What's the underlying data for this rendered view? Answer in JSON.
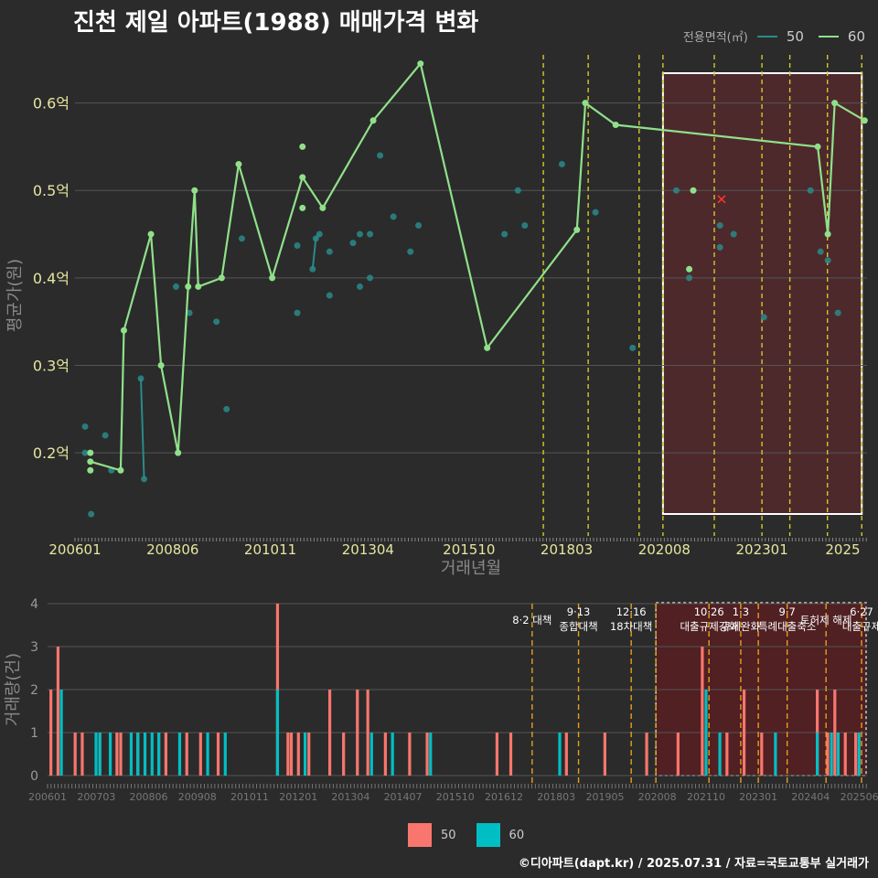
{
  "title": "진천 제일 아파트(1988) 매매가격 변화",
  "credit": "©디아파트(dapt.kr) / 2025.07.31 / 자료=국토교통부 실거래가",
  "legend_top": {
    "title": "전용면적(㎡)",
    "items": [
      {
        "label": "50",
        "color": "#2a8a8a"
      },
      {
        "label": "60",
        "color": "#90e08a"
      }
    ]
  },
  "legend_bottom": {
    "items": [
      {
        "label": "50",
        "color": "#f8766d"
      },
      {
        "label": "60",
        "color": "#00bfc4"
      }
    ]
  },
  "chart_data": [
    {
      "type": "line",
      "xlabel": "거래년월",
      "ylabel": "평균가(원)",
      "x_ticks": [
        "200601",
        "200806",
        "201011",
        "201304",
        "201510",
        "201803",
        "202008",
        "202301",
        "2025"
      ],
      "y_ticks": [
        "0.2억",
        "0.3억",
        "0.4억",
        "0.5억",
        "0.6억"
      ],
      "y_tick_values": [
        0.2,
        0.3,
        0.4,
        0.5,
        0.6
      ],
      "ylim": [
        0.105,
        0.655
      ],
      "xlim": [
        2006.0,
        2025.6
      ],
      "policy_lines": [
        2017.59,
        2018.7,
        2019.96,
        2020.55,
        2021.82,
        2023.0,
        2023.69,
        2024.62,
        2025.47
      ],
      "highlight_range": [
        2020.55,
        2025.47
      ],
      "marker_x": {
        "x": 2022.0,
        "y": 0.49
      },
      "series": [
        {
          "name": "50",
          "color": "#2a8a8a",
          "line_segments": [
            [
              [
                2007.63,
                0.285
              ],
              [
                2007.71,
                0.17
              ]
            ],
            [
              [
                2011.88,
                0.41
              ],
              [
                2011.96,
                0.445
              ],
              [
                2012.05,
                0.45
              ]
            ]
          ],
          "points": [
            [
              2006.25,
              0.23
            ],
            [
              2006.25,
              0.2
            ],
            [
              2006.4,
              0.13
            ],
            [
              2006.75,
              0.22
            ],
            [
              2006.9,
              0.18
            ],
            [
              2007.63,
              0.285
            ],
            [
              2007.71,
              0.17
            ],
            [
              2008.5,
              0.39
            ],
            [
              2008.83,
              0.36
            ],
            [
              2009.5,
              0.35
            ],
            [
              2009.75,
              0.25
            ],
            [
              2010.13,
              0.445
            ],
            [
              2011.5,
              0.437
            ],
            [
              2011.5,
              0.36
            ],
            [
              2011.88,
              0.41
            ],
            [
              2011.96,
              0.445
            ],
            [
              2012.05,
              0.45
            ],
            [
              2012.3,
              0.43
            ],
            [
              2012.3,
              0.38
            ],
            [
              2012.88,
              0.44
            ],
            [
              2013.05,
              0.45
            ],
            [
              2013.05,
              0.39
            ],
            [
              2013.3,
              0.45
            ],
            [
              2013.3,
              0.4
            ],
            [
              2013.55,
              0.54
            ],
            [
              2013.88,
              0.47
            ],
            [
              2014.3,
              0.43
            ],
            [
              2014.5,
              0.46
            ],
            [
              2016.63,
              0.45
            ],
            [
              2016.96,
              0.5
            ],
            [
              2017.13,
              0.46
            ],
            [
              2018.05,
              0.53
            ],
            [
              2018.88,
              0.475
            ],
            [
              2019.8,
              0.32
            ],
            [
              2020.88,
              0.5
            ],
            [
              2021.2,
              0.4
            ],
            [
              2021.96,
              0.46
            ],
            [
              2021.96,
              0.435
            ],
            [
              2022.3,
              0.45
            ],
            [
              2023.05,
              0.355
            ],
            [
              2024.2,
              0.5
            ],
            [
              2024.45,
              0.43
            ],
            [
              2024.63,
              0.42
            ],
            [
              2024.88,
              0.36
            ]
          ]
        },
        {
          "name": "60",
          "color": "#90e08a",
          "line": [
            [
              2006.38,
              0.19
            ],
            [
              2007.13,
              0.18
            ],
            [
              2007.21,
              0.34
            ],
            [
              2007.88,
              0.45
            ],
            [
              2008.13,
              0.3
            ],
            [
              2008.55,
              0.2
            ],
            [
              2008.8,
              0.39
            ],
            [
              2008.96,
              0.5
            ],
            [
              2009.05,
              0.39
            ],
            [
              2009.63,
              0.4
            ],
            [
              2010.05,
              0.53
            ],
            [
              2010.88,
              0.4
            ],
            [
              2011.63,
              0.515
            ],
            [
              2012.13,
              0.48
            ],
            [
              2013.38,
              0.58
            ],
            [
              2014.55,
              0.645
            ],
            [
              2016.2,
              0.32
            ],
            [
              2018.42,
              0.455
            ],
            [
              2018.63,
              0.6
            ],
            [
              2019.38,
              0.575
            ],
            [
              2024.38,
              0.55
            ],
            [
              2024.63,
              0.45
            ],
            [
              2024.8,
              0.6
            ],
            [
              2025.54,
              0.58
            ]
          ],
          "extra_points": [
            [
              2006.38,
              0.2
            ],
            [
              2006.38,
              0.18
            ],
            [
              2011.63,
              0.55
            ],
            [
              2011.63,
              0.48
            ],
            [
              2021.2,
              0.41
            ],
            [
              2021.3,
              0.5
            ]
          ]
        }
      ]
    },
    {
      "type": "bar",
      "ylabel": "거래량(건)",
      "ylim": [
        0,
        4
      ],
      "y_ticks": [
        "0",
        "1",
        "2",
        "3",
        "4"
      ],
      "x_ticks": [
        "200601",
        "200703",
        "200806",
        "200908",
        "201011",
        "201201",
        "201304",
        "201407",
        "201510",
        "201612",
        "201803",
        "201905",
        "202008",
        "202110",
        "202301",
        "202404",
        "202506"
      ],
      "policy_lines": [
        2017.59,
        2018.7,
        2019.96,
        2020.55,
        2021.82,
        2022.58,
        2023.0,
        2023.69,
        2024.62,
        2025.47
      ],
      "highlight_range": [
        2020.55,
        2025.47
      ],
      "policy_labels": [
        {
          "x": 2017.59,
          "lines": [
            "8·2 대책"
          ]
        },
        {
          "x": 2018.7,
          "lines": [
            "9·13",
            "종합대책"
          ]
        },
        {
          "x": 2019.96,
          "lines": [
            "12·16",
            "18차대책"
          ]
        },
        {
          "x": 2021.82,
          "lines": [
            "10·26",
            "대출규제강화"
          ]
        },
        {
          "x": 2022.58,
          "lines": [
            "1·3",
            "규제완화"
          ]
        },
        {
          "x": 2023.69,
          "lines": [
            "9·7",
            "특례대출축소"
          ]
        },
        {
          "x": 2024.62,
          "lines": [
            "토허제 해제"
          ]
        },
        {
          "x": 2025.47,
          "lines": [
            "6·27",
            "대출규제"
          ]
        }
      ],
      "bars_50": [
        [
          2006.08,
          2
        ],
        [
          2006.25,
          3
        ],
        [
          2006.66,
          1
        ],
        [
          2006.83,
          1
        ],
        [
          2007.25,
          1
        ],
        [
          2007.66,
          1
        ],
        [
          2007.75,
          1
        ],
        [
          2008.16,
          1
        ],
        [
          2008.66,
          1
        ],
        [
          2008.83,
          1
        ],
        [
          2009.33,
          1
        ],
        [
          2009.66,
          1
        ],
        [
          2010.08,
          1
        ],
        [
          2011.5,
          4
        ],
        [
          2011.75,
          1
        ],
        [
          2011.83,
          1
        ],
        [
          2012.0,
          1
        ],
        [
          2012.25,
          1
        ],
        [
          2012.75,
          2
        ],
        [
          2013.08,
          1
        ],
        [
          2013.41,
          2
        ],
        [
          2013.66,
          2
        ],
        [
          2014.08,
          1
        ],
        [
          2014.66,
          1
        ],
        [
          2015.08,
          1
        ],
        [
          2016.75,
          1
        ],
        [
          2017.08,
          1
        ],
        [
          2018.41,
          1
        ],
        [
          2019.33,
          1
        ],
        [
          2020.33,
          1
        ],
        [
          2021.08,
          1
        ],
        [
          2021.66,
          3
        ],
        [
          2022.25,
          1
        ],
        [
          2022.66,
          2
        ],
        [
          2023.08,
          1
        ],
        [
          2024.41,
          2
        ],
        [
          2024.66,
          1
        ],
        [
          2024.83,
          2
        ],
        [
          2025.08,
          1
        ],
        [
          2025.33,
          1
        ]
      ],
      "bars_60": [
        [
          2006.33,
          2
        ],
        [
          2007.16,
          1
        ],
        [
          2007.25,
          1
        ],
        [
          2007.5,
          1
        ],
        [
          2008.0,
          1
        ],
        [
          2008.16,
          1
        ],
        [
          2008.33,
          1
        ],
        [
          2008.5,
          1
        ],
        [
          2008.66,
          1
        ],
        [
          2009.16,
          1
        ],
        [
          2009.83,
          1
        ],
        [
          2010.25,
          1
        ],
        [
          2011.5,
          2
        ],
        [
          2012.16,
          1
        ],
        [
          2013.75,
          1
        ],
        [
          2014.25,
          1
        ],
        [
          2015.16,
          1
        ],
        [
          2018.25,
          1
        ],
        [
          2021.75,
          2
        ],
        [
          2022.08,
          1
        ],
        [
          2023.41,
          1
        ],
        [
          2024.41,
          1
        ],
        [
          2024.75,
          1
        ],
        [
          2024.91,
          1
        ],
        [
          2025.41,
          1
        ]
      ]
    }
  ]
}
